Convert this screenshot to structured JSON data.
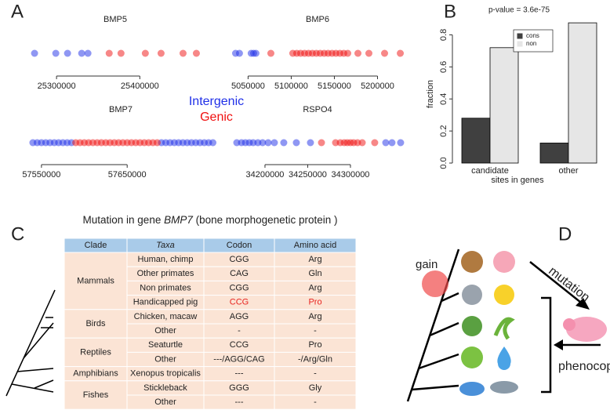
{
  "panel_labels": [
    "A",
    "B",
    "C",
    "D"
  ],
  "legend": [
    {
      "name": "Intergenic",
      "color": "#1f2fe8"
    },
    {
      "name": "Genic",
      "color": "#f01010"
    }
  ],
  "chart_data": [
    {
      "type": "strip",
      "title": "BMP5",
      "xlim": [
        25266000,
        25475000
      ],
      "xticks": [
        25300000,
        25400000
      ],
      "series": [
        {
          "color": "#1f2fe8",
          "x": [
            25273600,
            25299100,
            25313200,
            25330200,
            25337700
          ]
        },
        {
          "color": "#f01010",
          "x": [
            25363200,
            25377400,
            25406600,
            25425500,
            25451900,
            25467900
          ]
        }
      ]
    },
    {
      "type": "strip",
      "title": "BMP6",
      "xlim": [
        5026000,
        5235000
      ],
      "xticks": [
        5050000,
        5100000,
        5150000,
        5200000
      ],
      "series": [
        {
          "color": "#1f2fe8",
          "x": [
            5035500,
            5040000,
            5053600,
            5056400,
            5059100
          ]
        },
        {
          "color": "#f01010",
          "x": [
            5076400,
            5101800,
            5106400,
            5110900,
            5115500,
            5120000,
            5124500,
            5129100,
            5133600,
            5138200,
            5142700,
            5147300,
            5151800,
            5156400,
            5160900,
            5165500,
            5177300,
            5190000,
            5208200,
            5226400
          ]
        }
      ]
    },
    {
      "type": "strip",
      "title": "BMP7",
      "xlim": [
        57530000,
        57755000
      ],
      "xticks": [
        57550000,
        57650000
      ],
      "series": [
        {
          "color": "#1f2fe8",
          "x": [
            57540000,
            57545000,
            57550000,
            57555000,
            57560000,
            57565000,
            57570000,
            57575000,
            57580000,
            57585000,
            57690000,
            57695000,
            57700000,
            57705000,
            57710000,
            57715000,
            57720000,
            57725000,
            57730000,
            57735000,
            57740000,
            57745000,
            57750000
          ]
        },
        {
          "color": "#f01010",
          "x": [
            57590000,
            57595000,
            57600000,
            57605000,
            57610000,
            57615000,
            57620000,
            57625000,
            57630000,
            57635000,
            57640000,
            57645000,
            57650000,
            57655000,
            57660000,
            57665000,
            57670000,
            57675000,
            57680000,
            57685000
          ]
        }
      ]
    },
    {
      "type": "strip",
      "title": "RSPO4",
      "xlim": [
        34156000,
        34367000
      ],
      "xticks": [
        34200000,
        34250000,
        34300000
      ],
      "series": [
        {
          "color": "#1f2fe8",
          "x": [
            34167000,
            34172500,
            34177100,
            34181700,
            34186200,
            34191700,
            34197200,
            34203700,
            34211000,
            34222000,
            34236700,
            34253200,
            34341300,
            34348600,
            34358700
          ]
        },
        {
          "color": "#f01010",
          "x": [
            34266100,
            34282600,
            34288100,
            34292700,
            34296300,
            34300000,
            34303700,
            34308300,
            34313800,
            34328400
          ]
        }
      ]
    },
    {
      "type": "bar",
      "title": "p-value = 3.6e-75",
      "xlabel": "sites in genes",
      "ylabel": "fraction",
      "categories": [
        "candidate",
        "other"
      ],
      "series": [
        {
          "name": "cons",
          "color": "#404040",
          "values": [
            0.28,
            0.125
          ]
        },
        {
          "name": "non",
          "color": "#e6e6e6",
          "values": [
            0.72,
            0.875
          ]
        }
      ],
      "ylim": [
        0,
        0.9
      ],
      "yticks": [
        {
          "value": 0,
          "label": "0.0"
        },
        0.2,
        0.4,
        0.6,
        0.8
      ],
      "legend_position": "top-right"
    }
  ],
  "table": {
    "caption": [
      "Mutation in gene ",
      "BMP7",
      " (bone morphogenetic protein )"
    ],
    "header": [
      "Clade",
      "Taxa",
      "Codon",
      "Amino acid"
    ],
    "groups": [
      {
        "clade": "Mammals",
        "rows": [
          [
            "Human, chimp",
            "CGG",
            "Arg"
          ],
          [
            "Other primates",
            "CAG",
            "Gln"
          ],
          [
            "Non primates",
            "CGG",
            "Arg"
          ],
          [
            "Handicapped pig",
            "CCG",
            "Pro"
          ]
        ]
      },
      {
        "clade": "Birds",
        "rows": [
          [
            "Chicken, macaw",
            "AGG",
            "Arg"
          ],
          [
            "Other",
            "-",
            "-"
          ]
        ]
      },
      {
        "clade": "Reptiles",
        "rows": [
          [
            "Seaturtle",
            "CCG",
            "Pro"
          ],
          [
            "Other",
            "---/AGG/CAG",
            "-/Arg/Gln"
          ]
        ]
      },
      {
        "clade": "Amphibians",
        "rows": [
          [
            "Xenopus tropicalis",
            "---",
            "-"
          ]
        ]
      },
      {
        "clade": "Fishes",
        "rows": [
          [
            "Stickleback",
            "GGG",
            "Gly"
          ],
          [
            "Other",
            "---",
            "-"
          ]
        ]
      }
    ],
    "highlight": {
      "group": 0,
      "row": 3,
      "color": "#e8231f"
    }
  },
  "diagram": {
    "gain": "gain",
    "mutation": "mutation",
    "phenocopy": "phenocopy"
  }
}
